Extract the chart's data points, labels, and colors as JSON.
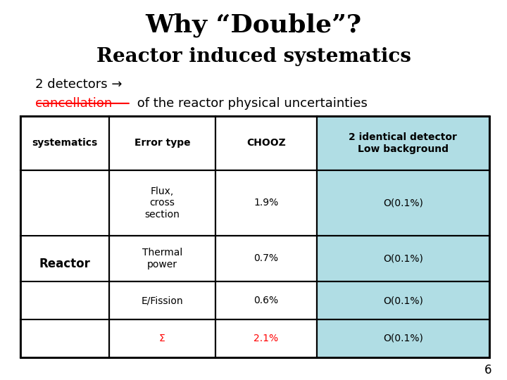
{
  "title": "Why “Double”?",
  "subtitle": "Reactor induced systematics",
  "line1": "2 detectors →",
  "line2_red": "cancellation",
  "line2_rest": " of the reactor physical uncertainties",
  "table_headers": [
    "systematics",
    "Error type",
    "CHOOZ",
    "2 identical detector\nLow background"
  ],
  "row_group": "Reactor",
  "rows": [
    [
      "Flux,\ncross\nsection",
      "1.9%",
      "O(0.1%)"
    ],
    [
      "Thermal\npower",
      "0.7%",
      "O(0.1%)"
    ],
    [
      "E/Fission",
      "0.6%",
      "O(0.1%)"
    ],
    [
      "Σ",
      "2.1%",
      "O(0.1%)"
    ]
  ],
  "highlight_color": "#b0dde4",
  "bg_color": "#ffffff",
  "page_number": "6"
}
